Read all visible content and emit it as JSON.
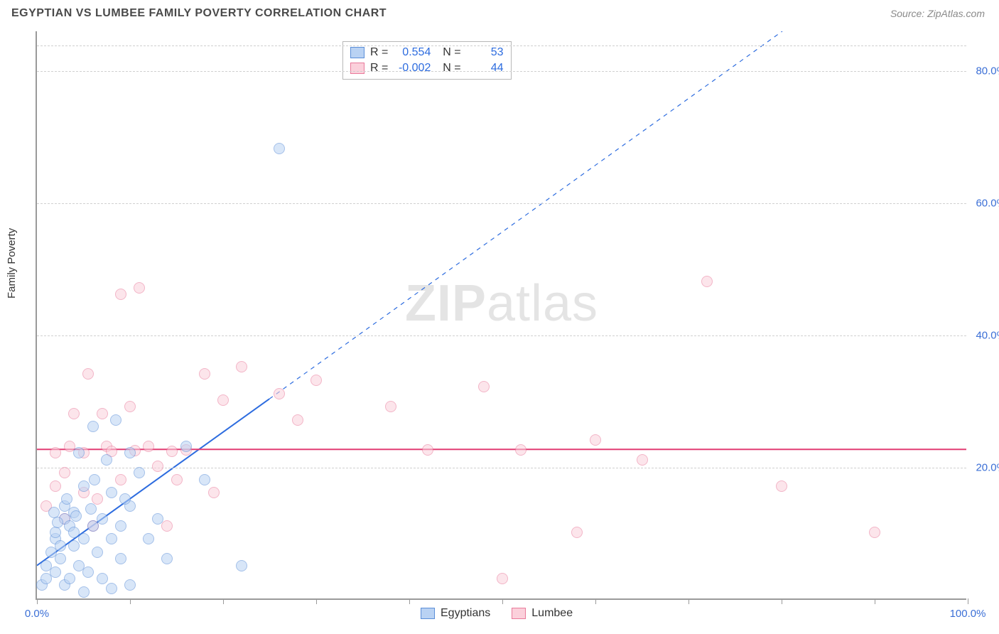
{
  "header": {
    "title": "EGYPTIAN VS LUMBEE FAMILY POVERTY CORRELATION CHART",
    "source": "Source: ZipAtlas.com"
  },
  "chart": {
    "type": "scatter",
    "ylabel": "Family Poverty",
    "xlim": [
      0,
      100
    ],
    "ylim": [
      0,
      86
    ],
    "xtick_positions": [
      0,
      10,
      20,
      30,
      40,
      50,
      60,
      70,
      80,
      90,
      100
    ],
    "xtick_labels": {
      "0": "0.0%",
      "100": "100.0%"
    },
    "ytick_positions": [
      20,
      40,
      60,
      80
    ],
    "ytick_labels": {
      "20": "20.0%",
      "40": "40.0%",
      "60": "60.0%",
      "80": "80.0%"
    },
    "grid_color": "#d0d0d0",
    "background_color": "#ffffff",
    "watermark": {
      "part1": "ZIP",
      "part2": "atlas"
    },
    "series": [
      {
        "name": "Egyptians",
        "fill": "#b9d2f3",
        "stroke": "#5a8ed8",
        "marker_radius": 8,
        "fill_opacity": 0.55,
        "trend": {
          "type": "linear",
          "x1": 0,
          "y1": 5,
          "x2": 100,
          "y2": 106,
          "solid_until_x": 25,
          "color": "#2d6cdf",
          "width": 2
        },
        "R": "0.554",
        "N": "53",
        "points": [
          [
            0.5,
            2
          ],
          [
            1,
            3
          ],
          [
            1,
            5
          ],
          [
            1.5,
            7
          ],
          [
            2,
            4
          ],
          [
            2,
            9
          ],
          [
            2,
            10
          ],
          [
            2.5,
            6
          ],
          [
            2.5,
            8
          ],
          [
            3,
            2
          ],
          [
            3,
            12
          ],
          [
            3,
            14
          ],
          [
            3.5,
            3
          ],
          [
            3.5,
            11
          ],
          [
            4,
            8
          ],
          [
            4,
            10
          ],
          [
            4,
            13
          ],
          [
            4.5,
            5
          ],
          [
            4.5,
            22
          ],
          [
            5,
            1
          ],
          [
            5,
            9
          ],
          [
            5,
            17
          ],
          [
            5.5,
            4
          ],
          [
            6,
            11
          ],
          [
            6,
            26
          ],
          [
            6.5,
            7
          ],
          [
            7,
            3
          ],
          [
            7,
            12
          ],
          [
            7.5,
            21
          ],
          [
            8,
            1.5
          ],
          [
            8,
            9
          ],
          [
            8.5,
            27
          ],
          [
            9,
            6
          ],
          [
            9,
            11
          ],
          [
            10,
            2
          ],
          [
            10,
            14
          ],
          [
            10,
            22
          ],
          [
            11,
            19
          ],
          [
            12,
            9
          ],
          [
            13,
            12
          ],
          [
            14,
            6
          ],
          [
            16,
            23
          ],
          [
            18,
            18
          ],
          [
            22,
            5
          ],
          [
            26,
            68
          ],
          [
            8,
            16
          ],
          [
            3.2,
            15
          ],
          [
            1.8,
            13
          ],
          [
            2.2,
            11.5
          ],
          [
            4.2,
            12.5
          ],
          [
            6.2,
            18
          ],
          [
            9.5,
            15
          ],
          [
            5.8,
            13.5
          ]
        ]
      },
      {
        "name": "Lumbee",
        "fill": "#fbd0db",
        "stroke": "#e97a9b",
        "marker_radius": 8,
        "fill_opacity": 0.55,
        "trend": {
          "type": "horizontal",
          "y": 22.6,
          "color": "#e23d73",
          "width": 2
        },
        "R": "-0.002",
        "N": "44",
        "points": [
          [
            1,
            14
          ],
          [
            2,
            17
          ],
          [
            2,
            22
          ],
          [
            3,
            12
          ],
          [
            3,
            19
          ],
          [
            4,
            28
          ],
          [
            5,
            16
          ],
          [
            5,
            22
          ],
          [
            5.5,
            34
          ],
          [
            6,
            11
          ],
          [
            7,
            28
          ],
          [
            7.5,
            23
          ],
          [
            8,
            22.3
          ],
          [
            9,
            18
          ],
          [
            9,
            46
          ],
          [
            10,
            29
          ],
          [
            11,
            47
          ],
          [
            12,
            23
          ],
          [
            13,
            20
          ],
          [
            14,
            11
          ],
          [
            15,
            18
          ],
          [
            16,
            22.5
          ],
          [
            18,
            34
          ],
          [
            19,
            16
          ],
          [
            20,
            30
          ],
          [
            22,
            35
          ],
          [
            26,
            31
          ],
          [
            28,
            27
          ],
          [
            30,
            33
          ],
          [
            38,
            29
          ],
          [
            42,
            22.5
          ],
          [
            48,
            32
          ],
          [
            50,
            3
          ],
          [
            52,
            22.5
          ],
          [
            58,
            10
          ],
          [
            60,
            24
          ],
          [
            65,
            21
          ],
          [
            72,
            48
          ],
          [
            80,
            17
          ],
          [
            90,
            10
          ],
          [
            14.5,
            22.3
          ],
          [
            6.5,
            15
          ],
          [
            3.5,
            23
          ],
          [
            10.5,
            22.4
          ]
        ]
      }
    ],
    "legend": {
      "items": [
        {
          "label": "Egyptians",
          "fill": "#b9d2f3",
          "stroke": "#5a8ed8"
        },
        {
          "label": "Lumbee",
          "fill": "#fbd0db",
          "stroke": "#e97a9b"
        }
      ]
    }
  }
}
